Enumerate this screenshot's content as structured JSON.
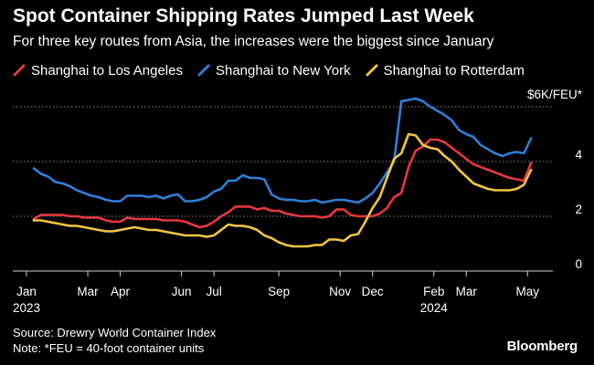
{
  "title": "Spot Container Shipping Rates Jumped Last Week",
  "subtitle": "For three key routes from Asia, the increases were the biggest since January",
  "source": "Source: Drewry World Container Index",
  "note": "Note: *FEU = 40-foot container units",
  "brand": "Bloomberg",
  "chart_data": {
    "type": "line",
    "title": "Spot Container Shipping Rates Jumped Last Week",
    "ylabel": "$K/FEU*",
    "y_axis_top_label": "$6K/FEU*",
    "ylim": [
      0,
      6
    ],
    "yticks": [
      0,
      2,
      4,
      6
    ],
    "ytick_labels": [
      "0",
      "2",
      "4",
      "$6K/FEU*"
    ],
    "grid": true,
    "x_domain": [
      0,
      72
    ],
    "x_ticks": [
      {
        "x": 0,
        "label": "Jan",
        "sublabel": "2023"
      },
      {
        "x": 8.5,
        "label": "Mar",
        "sublabel": ""
      },
      {
        "x": 13,
        "label": "Apr",
        "sublabel": ""
      },
      {
        "x": 21.5,
        "label": "Jun",
        "sublabel": ""
      },
      {
        "x": 26,
        "label": "Jul",
        "sublabel": ""
      },
      {
        "x": 35,
        "label": "Sep",
        "sublabel": ""
      },
      {
        "x": 43.5,
        "label": "Nov",
        "sublabel": ""
      },
      {
        "x": 48,
        "label": "Dec",
        "sublabel": ""
      },
      {
        "x": 56.5,
        "label": "Feb",
        "sublabel": "2024"
      },
      {
        "x": 61,
        "label": "Mar",
        "sublabel": ""
      },
      {
        "x": 69.5,
        "label": "May",
        "sublabel": ""
      }
    ],
    "series": [
      {
        "name": "Shanghai to Los Angeles",
        "color": "#e8383d",
        "x": [
          1,
          2,
          3,
          4,
          5,
          6,
          7,
          8,
          9,
          10,
          11,
          12,
          13,
          14,
          15,
          16,
          17,
          18,
          19,
          20,
          21,
          22,
          23,
          24,
          25,
          26,
          27,
          28,
          29,
          30,
          31,
          32,
          33,
          34,
          35,
          36,
          37,
          38,
          39,
          40,
          41,
          42,
          43,
          44,
          45,
          46,
          47,
          48,
          49,
          50,
          51,
          52,
          53,
          54,
          55,
          56,
          57,
          58,
          59,
          60,
          61,
          62,
          63,
          64,
          65,
          66,
          67,
          68,
          69,
          70
        ],
        "values": [
          1.9,
          2.05,
          2.05,
          2.05,
          2.05,
          2.0,
          2.0,
          1.95,
          1.95,
          1.95,
          1.85,
          1.8,
          1.8,
          1.95,
          1.9,
          1.9,
          1.9,
          1.9,
          1.85,
          1.85,
          1.85,
          1.8,
          1.7,
          1.6,
          1.65,
          1.8,
          2.0,
          2.15,
          2.35,
          2.35,
          2.35,
          2.25,
          2.3,
          2.2,
          2.2,
          2.1,
          2.05,
          2.0,
          2.0,
          2.0,
          1.95,
          2.0,
          2.25,
          2.25,
          2.05,
          2.0,
          2.0,
          2.0,
          2.1,
          2.3,
          2.7,
          2.85,
          3.8,
          4.4,
          4.55,
          4.8,
          4.8,
          4.7,
          4.5,
          4.3,
          4.1,
          3.9,
          3.8,
          3.7,
          3.6,
          3.5,
          3.4,
          3.35,
          3.3,
          3.95
        ]
      },
      {
        "name": "Shanghai to New York",
        "color": "#2f7fd9",
        "x": [
          1,
          2,
          3,
          4,
          5,
          6,
          7,
          8,
          9,
          10,
          11,
          12,
          13,
          14,
          15,
          16,
          17,
          18,
          19,
          20,
          21,
          22,
          23,
          24,
          25,
          26,
          27,
          28,
          29,
          30,
          31,
          32,
          33,
          34,
          35,
          36,
          37,
          38,
          39,
          40,
          41,
          42,
          43,
          44,
          45,
          46,
          47,
          48,
          49,
          50,
          51,
          52,
          53,
          54,
          55,
          56,
          57,
          58,
          59,
          60,
          61,
          62,
          63,
          64,
          65,
          66,
          67,
          68,
          69,
          70
        ],
        "values": [
          3.75,
          3.55,
          3.45,
          3.25,
          3.2,
          3.1,
          2.95,
          2.85,
          2.75,
          2.7,
          2.6,
          2.55,
          2.55,
          2.75,
          2.75,
          2.75,
          2.7,
          2.75,
          2.65,
          2.75,
          2.8,
          2.55,
          2.55,
          2.6,
          2.7,
          2.9,
          3.0,
          3.3,
          3.3,
          3.5,
          3.4,
          3.4,
          3.35,
          2.8,
          2.65,
          2.6,
          2.6,
          2.55,
          2.55,
          2.6,
          2.5,
          2.55,
          2.6,
          2.6,
          2.55,
          2.5,
          2.65,
          2.85,
          3.2,
          3.6,
          4.0,
          6.2,
          6.25,
          6.3,
          6.2,
          6.0,
          5.85,
          5.7,
          5.5,
          5.15,
          5.0,
          4.9,
          4.6,
          4.45,
          4.3,
          4.2,
          4.3,
          4.35,
          4.3,
          4.85
        ]
      },
      {
        "name": "Shanghai to Rotterdam",
        "color": "#f4c542",
        "x": [
          1,
          2,
          3,
          4,
          5,
          6,
          7,
          8,
          9,
          10,
          11,
          12,
          13,
          14,
          15,
          16,
          17,
          18,
          19,
          20,
          21,
          22,
          23,
          24,
          25,
          26,
          27,
          28,
          29,
          30,
          31,
          32,
          33,
          34,
          35,
          36,
          37,
          38,
          39,
          40,
          41,
          42,
          43,
          44,
          45,
          46,
          47,
          48,
          49,
          50,
          51,
          52,
          53,
          54,
          55,
          56,
          57,
          58,
          59,
          60,
          61,
          62,
          63,
          64,
          65,
          66,
          67,
          68,
          69,
          70
        ],
        "values": [
          1.85,
          1.85,
          1.8,
          1.75,
          1.7,
          1.65,
          1.65,
          1.6,
          1.55,
          1.5,
          1.45,
          1.45,
          1.5,
          1.55,
          1.6,
          1.55,
          1.5,
          1.5,
          1.45,
          1.4,
          1.35,
          1.3,
          1.3,
          1.3,
          1.25,
          1.3,
          1.5,
          1.7,
          1.65,
          1.65,
          1.6,
          1.5,
          1.3,
          1.2,
          1.05,
          0.95,
          0.9,
          0.9,
          0.9,
          0.95,
          0.95,
          1.15,
          1.15,
          1.1,
          1.3,
          1.35,
          1.8,
          2.3,
          2.7,
          3.4,
          4.1,
          4.3,
          5.0,
          4.95,
          4.6,
          4.5,
          4.45,
          4.2,
          4.0,
          3.7,
          3.45,
          3.2,
          3.1,
          3.0,
          2.95,
          2.95,
          2.95,
          3.0,
          3.15,
          3.7
        ]
      }
    ]
  }
}
